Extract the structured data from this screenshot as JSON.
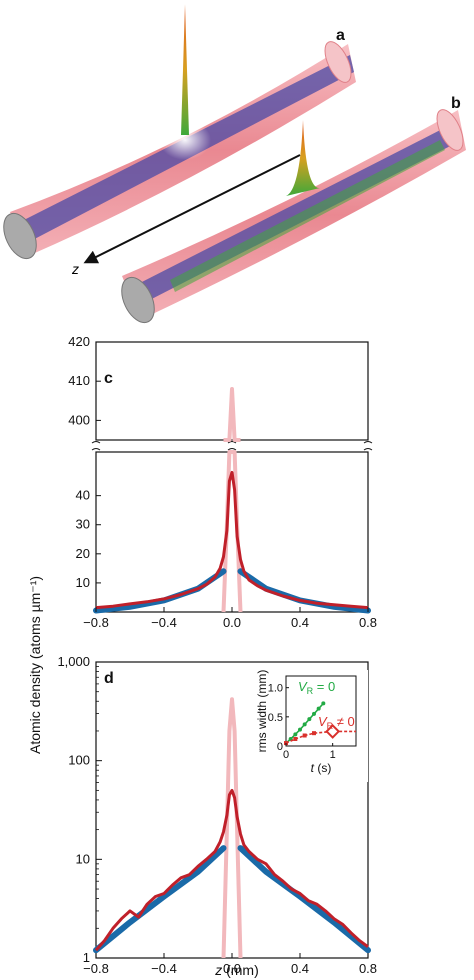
{
  "panel_labels": {
    "a": "a",
    "b": "b",
    "c": "c",
    "d": "d"
  },
  "illustration": {
    "axis_label": "z"
  },
  "shared_ylabel": "Atomic density (atoms µm⁻¹)",
  "colors": {
    "data_red": "#c0202a",
    "fit_blue": "#1a6aa8",
    "peak_pink": "#f2b8bc",
    "inset_green": "#22aa44",
    "inset_red": "#d9302c"
  },
  "chart_data": [
    {
      "id": "c",
      "type": "line",
      "xlabel": "",
      "ylabel": "Atomic density (atoms µm⁻¹)",
      "xlim": [
        -0.8,
        0.8
      ],
      "ylim_lower": [
        0,
        55
      ],
      "ylim_upper": [
        395,
        420
      ],
      "axis_break": true,
      "x_ticks": [
        "−0.8",
        "−0.4",
        "0.0",
        "0.4",
        "0.8"
      ],
      "x_tick_values": [
        -0.8,
        -0.4,
        0.0,
        0.4,
        0.8
      ],
      "y_ticks_lower": [
        "10",
        "20",
        "30",
        "40"
      ],
      "y_tick_values_lower": [
        10,
        20,
        30,
        40
      ],
      "y_ticks_upper": [
        "400",
        "410",
        "420"
      ],
      "y_tick_values_upper": [
        400,
        410,
        420
      ],
      "series": [
        {
          "role": "data",
          "color": "#c0202a",
          "x": [
            -0.8,
            -0.7,
            -0.6,
            -0.5,
            -0.4,
            -0.3,
            -0.2,
            -0.15,
            -0.1,
            -0.07,
            -0.05,
            -0.03,
            -0.015,
            0.0,
            0.015,
            0.03,
            0.05,
            0.07,
            0.1,
            0.15,
            0.2,
            0.3,
            0.4,
            0.5,
            0.6,
            0.7,
            0.8
          ],
          "y": [
            1.5,
            2.0,
            2.8,
            3.5,
            4.5,
            6.0,
            8.0,
            9.5,
            12.0,
            15.0,
            19.0,
            28.0,
            45.0,
            48.0,
            42.0,
            26.0,
            18.0,
            14.0,
            11.0,
            9.0,
            7.5,
            5.5,
            4.0,
            3.0,
            2.5,
            2.0,
            1.5
          ]
        },
        {
          "role": "fit",
          "color": "#1a6aa8",
          "x": [
            -0.8,
            -0.6,
            -0.4,
            -0.2,
            -0.05
          ],
          "y": [
            0.5,
            1.8,
            4.0,
            8.0,
            14.0
          ]
        },
        {
          "role": "fit",
          "color": "#1a6aa8",
          "x": [
            0.05,
            0.2,
            0.4,
            0.6,
            0.8
          ],
          "y": [
            14.0,
            8.0,
            4.0,
            1.8,
            0.5
          ]
        },
        {
          "role": "peak",
          "color": "#f2b8bc",
          "x": [
            -0.05,
            -0.03,
            -0.015,
            0.0,
            0.015,
            0.03,
            0.05
          ],
          "y": [
            0.0,
            30.0,
            200.0,
            408.0,
            200.0,
            30.0,
            0.0
          ]
        }
      ]
    },
    {
      "id": "d",
      "type": "line",
      "scale_y": "log",
      "xlabel": "z (mm)",
      "ylabel": "Atomic density (atoms µm⁻¹)",
      "xlim": [
        -0.8,
        0.8
      ],
      "ylim": [
        1,
        1000
      ],
      "x_ticks": [
        "−0.8",
        "−0.4",
        "0.0",
        "0.4",
        "0.8"
      ],
      "x_tick_values": [
        -0.8,
        -0.4,
        0.0,
        0.4,
        0.8
      ],
      "y_ticks": [
        "1",
        "10",
        "100",
        "1,000"
      ],
      "y_tick_values": [
        1,
        10,
        100,
        1000
      ],
      "series": [
        {
          "role": "data",
          "color": "#c0202a",
          "x": [
            -0.8,
            -0.75,
            -0.7,
            -0.65,
            -0.6,
            -0.55,
            -0.5,
            -0.45,
            -0.4,
            -0.35,
            -0.3,
            -0.25,
            -0.2,
            -0.15,
            -0.1,
            -0.07,
            -0.05,
            -0.03,
            -0.015,
            0.0,
            0.015,
            0.03,
            0.05,
            0.07,
            0.1,
            0.15,
            0.2,
            0.25,
            0.3,
            0.35,
            0.4,
            0.45,
            0.5,
            0.55,
            0.6,
            0.65,
            0.7,
            0.75,
            0.8
          ],
          "y": [
            1.2,
            1.5,
            2.0,
            2.5,
            3.0,
            2.6,
            3.5,
            4.2,
            4.5,
            5.5,
            6.5,
            7.0,
            8.5,
            10.0,
            12.0,
            15.0,
            19.0,
            28.0,
            45.0,
            50.0,
            42.0,
            27.0,
            18.0,
            14.0,
            12.0,
            10.0,
            9.0,
            7.0,
            6.0,
            5.0,
            4.5,
            3.8,
            3.5,
            3.0,
            2.5,
            2.2,
            1.8,
            1.5,
            1.3
          ]
        },
        {
          "role": "fit",
          "color": "#1a6aa8",
          "x": [
            -0.8,
            -0.6,
            -0.4,
            -0.2,
            -0.05
          ],
          "y": [
            1.2,
            2.3,
            4.2,
            7.5,
            13.0
          ]
        },
        {
          "role": "fit",
          "color": "#1a6aa8",
          "x": [
            0.05,
            0.2,
            0.4,
            0.6,
            0.8
          ],
          "y": [
            13.0,
            7.5,
            4.2,
            2.3,
            1.2
          ]
        },
        {
          "role": "peak",
          "color": "#f2b8bc",
          "x": [
            -0.05,
            -0.03,
            -0.015,
            0.0,
            0.015,
            0.03,
            0.05
          ],
          "y": [
            1.0,
            20.0,
            200.0,
            420.0,
            200.0,
            20.0,
            1.0
          ]
        }
      ],
      "inset": {
        "type": "line",
        "xlabel": "t (s)",
        "ylabel": "rms width (mm)",
        "xlim": [
          0,
          1.5
        ],
        "ylim": [
          0,
          1.2
        ],
        "x_ticks": [
          "0",
          "1"
        ],
        "x_tick_values": [
          0,
          1
        ],
        "y_ticks": [
          "0",
          "0.5",
          "1.0"
        ],
        "y_tick_values": [
          0,
          0.5,
          1.0
        ],
        "series": [
          {
            "name": "V_R = 0",
            "label_main": "V",
            "label_sub": "R",
            "label_rest": " = 0",
            "color": "#22aa44",
            "x": [
              0.0,
              0.1,
              0.2,
              0.3,
              0.4,
              0.5,
              0.6,
              0.7,
              0.8
            ],
            "y": [
              0.05,
              0.12,
              0.2,
              0.28,
              0.37,
              0.46,
              0.55,
              0.64,
              0.73
            ]
          },
          {
            "name": "V_R ≠ 0",
            "label_main": "V",
            "label_sub": "R",
            "label_rest": " ≠ 0",
            "color": "#d9302c",
            "x": [
              0.0,
              0.2,
              0.4,
              0.6,
              1.0,
              1.5
            ],
            "y": [
              0.05,
              0.12,
              0.18,
              0.22,
              0.25,
              0.25
            ],
            "marker_x": 1.0,
            "marker_y": 0.25
          }
        ]
      }
    }
  ]
}
